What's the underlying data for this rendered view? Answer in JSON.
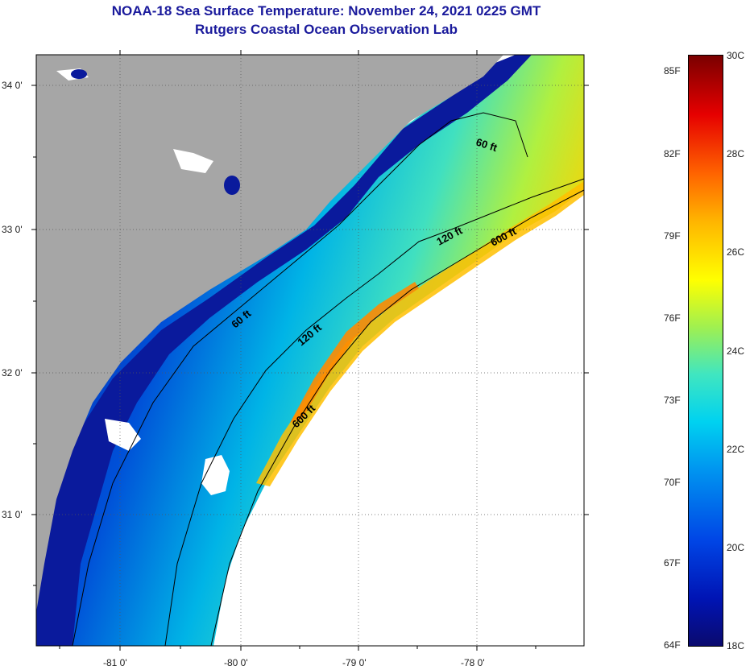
{
  "title": {
    "line1": "NOAA-18 Sea Surface Temperature:  November 24, 2021 0225 GMT",
    "line2": "Rutgers Coastal Ocean Observation Lab"
  },
  "map": {
    "latitude_labels": [
      "34 0'",
      "33 0'",
      "32 0'",
      "31 0'"
    ],
    "longitude_labels": [
      "-81 0'",
      "-80 0'",
      "-79 0'",
      "-78 0'"
    ],
    "contour_labels": [
      "60 ft",
      "60 ft",
      "120 ft",
      "120 ft",
      "600 ft",
      "600 ft"
    ],
    "colors": {
      "land": "#a6a6a6",
      "cloud": "#ffffff",
      "nearshore": "#0a1a9c",
      "shelf": "#00b4e6",
      "midshelf": "#a0f050",
      "warm": "#ffc000",
      "gulfstream": "#ff8000"
    }
  },
  "colorbar": {
    "fahrenheit_labels": [
      "85F",
      "82F",
      "79F",
      "76F",
      "73F",
      "70F",
      "67F",
      "64F"
    ],
    "celsius_labels": [
      "30C",
      "28C",
      "26C",
      "24C",
      "22C",
      "20C",
      "18C"
    ]
  }
}
